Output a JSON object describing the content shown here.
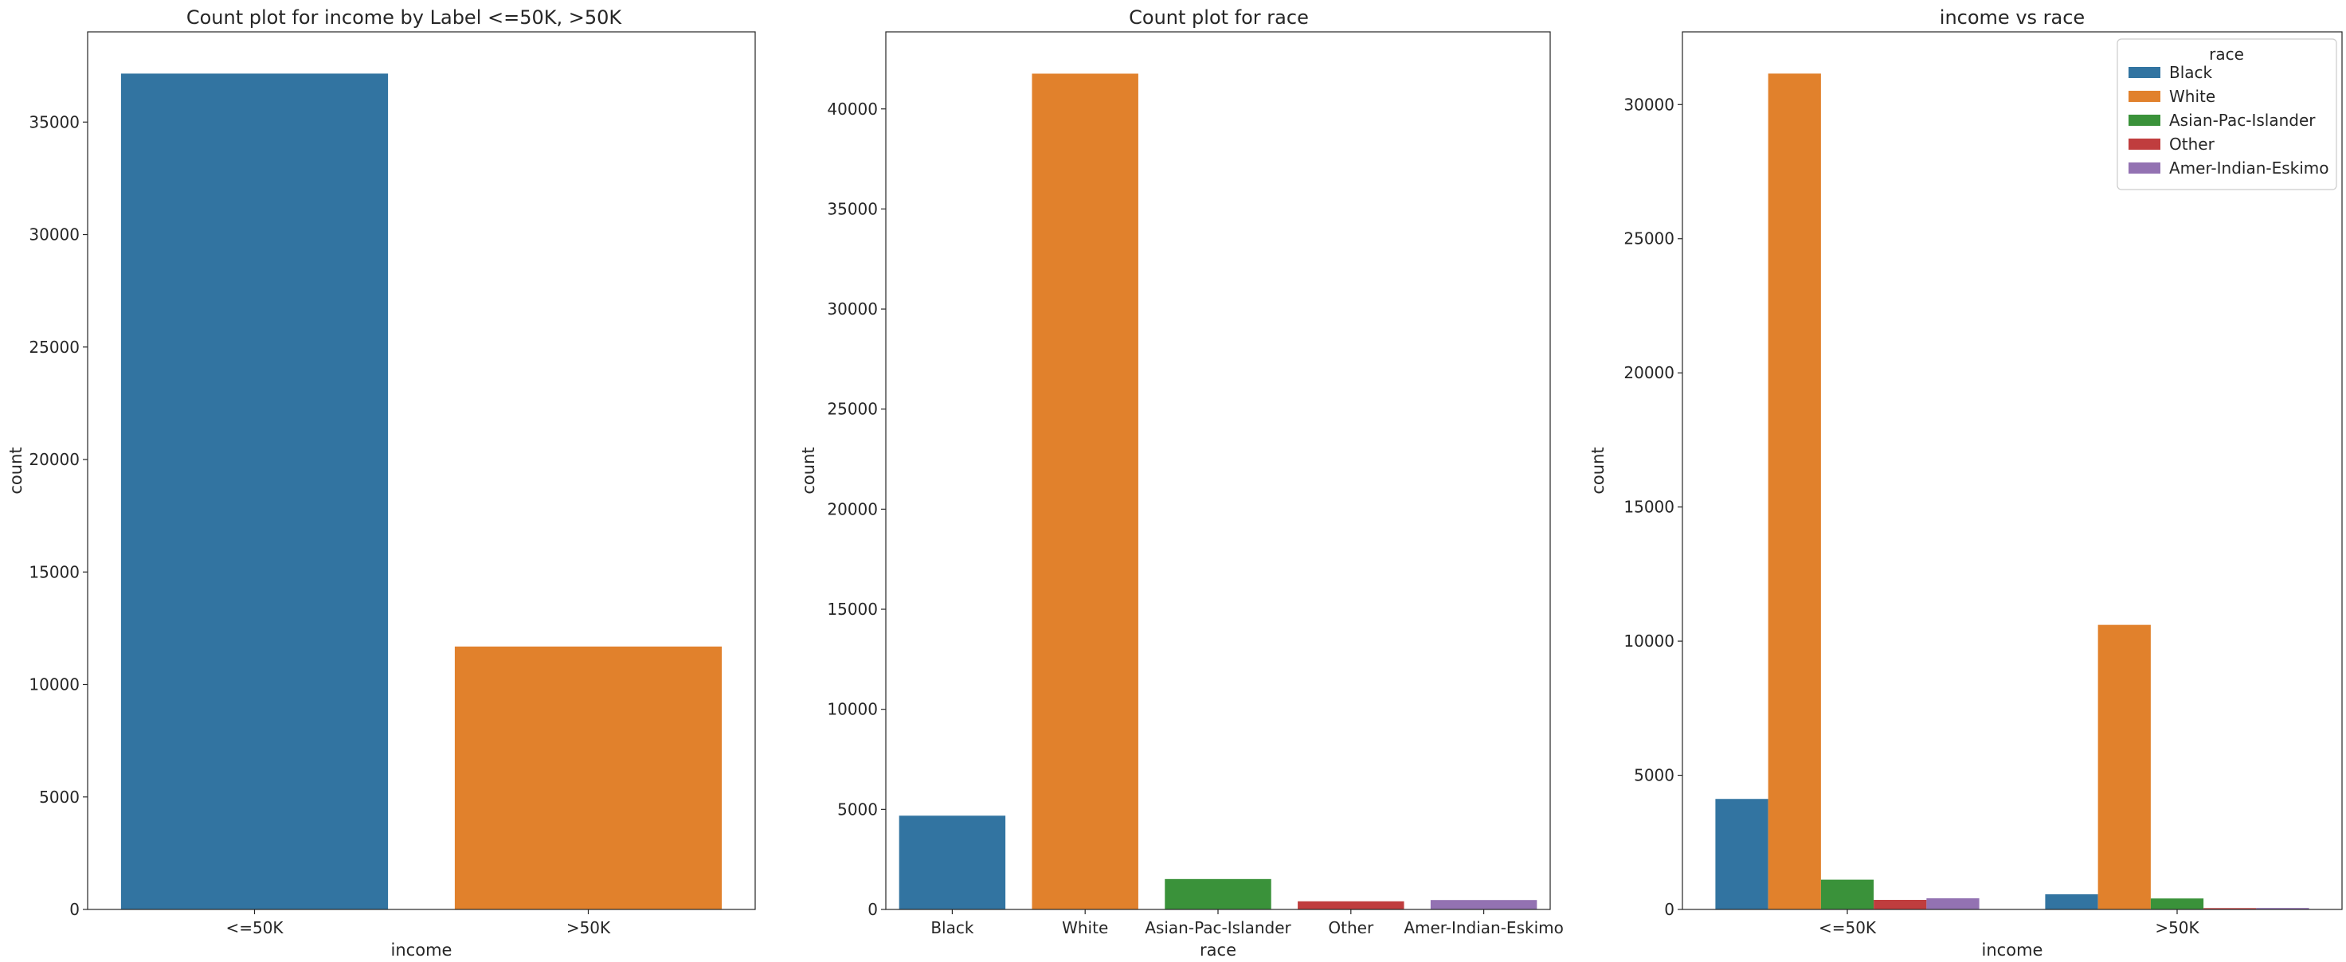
{
  "colors": {
    "blue": "#3274a1",
    "orange": "#e1812c",
    "green": "#3a923a",
    "red": "#c03d3e",
    "purple": "#9372b2",
    "axis": "#262626"
  },
  "chart_data": [
    {
      "type": "bar",
      "title": "Count plot for income by Label <=50K, >50K",
      "xlabel": "income",
      "ylabel": "count",
      "categories": [
        "<=50K",
        ">50K"
      ],
      "values": [
        37155,
        11687
      ],
      "bar_colors": [
        "#3274a1",
        "#e1812c"
      ],
      "ylim": [
        0,
        39010
      ],
      "yticks": [
        0,
        5000,
        10000,
        15000,
        20000,
        25000,
        30000,
        35000
      ],
      "ytick_labels": [
        "0",
        "5000",
        "10000",
        "15000",
        "20000",
        "25000",
        "30000",
        "35000"
      ],
      "grid": false
    },
    {
      "type": "bar",
      "title": "Count plot for race",
      "xlabel": "race",
      "ylabel": "count",
      "categories": [
        "Black",
        "White",
        "Asian-Pac-Islander",
        "Other",
        "Amer-Indian-Eskimo"
      ],
      "values": [
        4685,
        41762,
        1519,
        406,
        470
      ],
      "bar_colors": [
        "#3274a1",
        "#e1812c",
        "#3a923a",
        "#c03d3e",
        "#9372b2"
      ],
      "ylim": [
        0,
        43850
      ],
      "yticks": [
        0,
        5000,
        10000,
        15000,
        20000,
        25000,
        30000,
        35000,
        40000
      ],
      "ytick_labels": [
        "0",
        "5000",
        "10000",
        "15000",
        "20000",
        "25000",
        "30000",
        "35000",
        "40000"
      ],
      "grid": false
    },
    {
      "type": "bar",
      "title": "income vs race",
      "xlabel": "income",
      "ylabel": "count",
      "categories": [
        "<=50K",
        ">50K"
      ],
      "series": [
        {
          "name": "Black",
          "color": "#3274a1",
          "values": [
            4119,
            566
          ]
        },
        {
          "name": "White",
          "color": "#e1812c",
          "values": [
            31155,
            10607
          ]
        },
        {
          "name": "Asian-Pac-Islander",
          "color": "#3a923a",
          "values": [
            1110,
            409
          ]
        },
        {
          "name": "Other",
          "color": "#c03d3e",
          "values": [
            356,
            50
          ]
        },
        {
          "name": "Amer-Indian-Eskimo",
          "color": "#9372b2",
          "values": [
            415,
            55
          ]
        }
      ],
      "ylim": [
        0,
        32710
      ],
      "yticks": [
        0,
        5000,
        10000,
        15000,
        20000,
        25000,
        30000
      ],
      "ytick_labels": [
        "0",
        "5000",
        "10000",
        "15000",
        "20000",
        "25000",
        "30000"
      ],
      "legend_title": "race",
      "legend_position": "upper right",
      "grid": false
    }
  ]
}
